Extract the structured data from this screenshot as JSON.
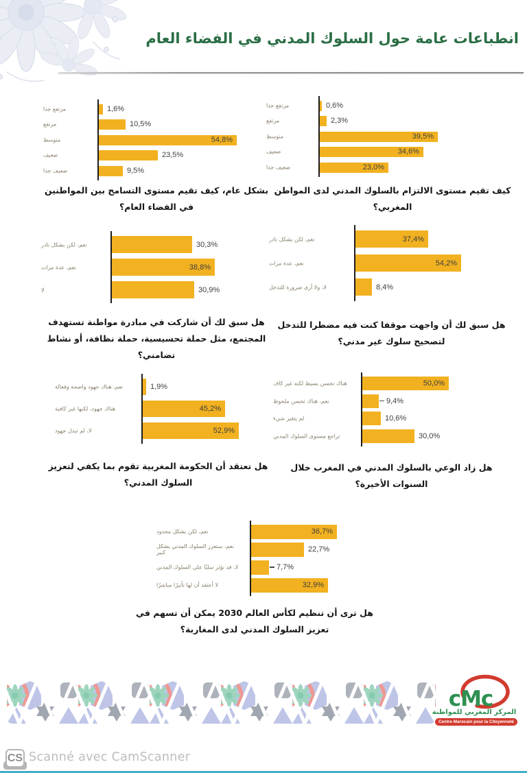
{
  "page": {
    "title": "انطباعات عامة حول السلوك المدني في الفضاء العام"
  },
  "colors": {
    "title_green": "#2a6e45",
    "bar_yellow": "#F2B120",
    "category_text": "#857c67",
    "value_text": "#3e3e3e",
    "logo_green": "#2E9051",
    "logo_red": "#D23B2F",
    "scanner_gray": "#bdbdbd",
    "bottom_edge_teal": "#43aec9"
  },
  "chart_data": [
    {
      "id": "commitment",
      "type": "bar",
      "orientation": "horizontal",
      "question": "كيف تقيم مستوى الالتزام بالسلوك المدني لدى المواطن المغربي؟",
      "categories": [
        "مرتفع جدا",
        "مرتفع",
        "متوسط",
        "ضعيف",
        "ضعيف جدا"
      ],
      "values": [
        0.6,
        2.3,
        39.5,
        34.6,
        23.0
      ],
      "value_labels": [
        "0,6%",
        "2,3%",
        "39,5%",
        "34,6%",
        "23,0%"
      ],
      "label_inside": [
        false,
        false,
        true,
        true,
        true
      ],
      "leader": [
        false,
        false,
        false,
        false,
        false
      ],
      "xlim": [
        0,
        64
      ],
      "grid": false,
      "legend": false
    },
    {
      "id": "tolerance",
      "type": "bar",
      "orientation": "horizontal",
      "question": "بشكل عام، كيف تقيم مستوى التسامح بين المواطنين في الفضاء العام؟",
      "categories": [
        "مرتفع جدا",
        "مرتفع",
        "متوسط",
        "ضعيف",
        "ضعيف جدا"
      ],
      "values": [
        1.6,
        10.5,
        54.8,
        23.5,
        9.5
      ],
      "value_labels": [
        "1,6%",
        "10,5%",
        "54,8%",
        "23,5%",
        "9,5%"
      ],
      "label_inside": [
        false,
        false,
        true,
        false,
        false
      ],
      "leader": [
        false,
        false,
        false,
        false,
        false
      ],
      "xlim": [
        0,
        71
      ],
      "grid": false,
      "legend": false
    },
    {
      "id": "intervention",
      "type": "bar",
      "orientation": "horizontal",
      "question": "هل سبق لك أن واجهت موقفا كنت فيه مضطرا للتدخل لتصحيح سلوك غير مدني؟",
      "categories": [
        "نعم، لكن بشكل نادر",
        "نعم، عدة مرات",
        "لا، ولا أرى ضرورة للتدخل"
      ],
      "values": [
        37.4,
        54.2,
        8.4
      ],
      "value_labels": [
        "37,4%",
        "54,2%",
        "8,4%"
      ],
      "label_inside": [
        true,
        true,
        false
      ],
      "leader": [
        false,
        false,
        false
      ],
      "xlim": [
        0,
        81
      ],
      "grid": false,
      "legend": false
    },
    {
      "id": "initiative",
      "type": "bar",
      "orientation": "horizontal",
      "question": "هل سبق لك أن شاركت في مبادرة مواطنة تستهدف المجتمع، مثل حملة تحسيسية، حملة نظافة، أو نشاط تضامني؟",
      "categories": [
        "نعم، لكن بشكل نادر",
        "نعم، عدة مرات",
        "لا"
      ],
      "values": [
        30.3,
        38.8,
        30.9
      ],
      "value_labels": [
        "30,3%",
        "38,8%",
        "30,9%"
      ],
      "label_inside": [
        false,
        true,
        false
      ],
      "leader": [
        false,
        false,
        false
      ],
      "xlim": [
        0,
        62
      ],
      "grid": false,
      "legend": false
    },
    {
      "id": "awareness",
      "type": "bar",
      "orientation": "horizontal",
      "question": "هل زاد الوعي بالسلوك المدني في المغرب خلال السنوات الأخيرة؟",
      "categories": [
        "هناك تحسن بسيط لكنه غير كاف",
        "نعم، هناك تحسن ملحوظ",
        "لم يتغير شيء",
        "تراجع مستوى السلوك المدني"
      ],
      "values": [
        50.0,
        9.4,
        10.6,
        30.0
      ],
      "value_labels": [
        "50,0%",
        "9,4%",
        "10,6%",
        "30,0%"
      ],
      "label_inside": [
        true,
        false,
        false,
        false
      ],
      "leader": [
        false,
        true,
        false,
        false
      ],
      "xlim": [
        0,
        87
      ],
      "grid": false,
      "legend": false
    },
    {
      "id": "government",
      "type": "bar",
      "orientation": "horizontal",
      "question": "هل تعتقد أن الحكومة المغربية تقوم بما يكفي لتعزيز السلوك المدني؟",
      "categories": [
        "نعم، هناك جهود واضحة وفعالة",
        "هناك جهود، لكنها غير كافية",
        "لا، لم تبذل جهود"
      ],
      "values": [
        1.9,
        45.2,
        52.9
      ],
      "value_labels": [
        "1,9%",
        "45,2%",
        "52,9%"
      ],
      "label_inside": [
        false,
        true,
        true
      ],
      "leader": [
        false,
        false,
        false
      ],
      "xlim": [
        0,
        81
      ],
      "grid": false,
      "legend": false
    },
    {
      "id": "worldcup",
      "type": "bar",
      "orientation": "horizontal",
      "question": "هل ترى أن تنظيم  لكأس العالم 2030 يمكن أن تسهم في تعزيز السلوك المدني لدى المغاربة؟",
      "categories": [
        "نعم، لكن بشكل محدود",
        "نعم، ستعزز  السلوك المدني بشكل كبير",
        "لا، قد تؤثر سلبًا على السلوك المدني",
        "لا أعتقد أن لها تأثيرًا مباشرًا"
      ],
      "values": [
        36.7,
        22.7,
        7.7,
        32.9
      ],
      "value_labels": [
        "36,7%",
        "22,7%",
        "7,7%",
        "32,9%"
      ],
      "label_inside": [
        true,
        false,
        false,
        true
      ],
      "leader": [
        false,
        false,
        true,
        false
      ],
      "xlim": [
        0,
        64
      ],
      "grid": false,
      "legend": false
    }
  ],
  "logo": {
    "acronym": "cMc",
    "arabic_name": "المركز المغربي للمواطنة",
    "french_name": "Centre Marocain pour la Citoyenneté"
  },
  "footer": {
    "cs_badge": "CS",
    "scanner_text": "Scanné avec CamScanner"
  }
}
